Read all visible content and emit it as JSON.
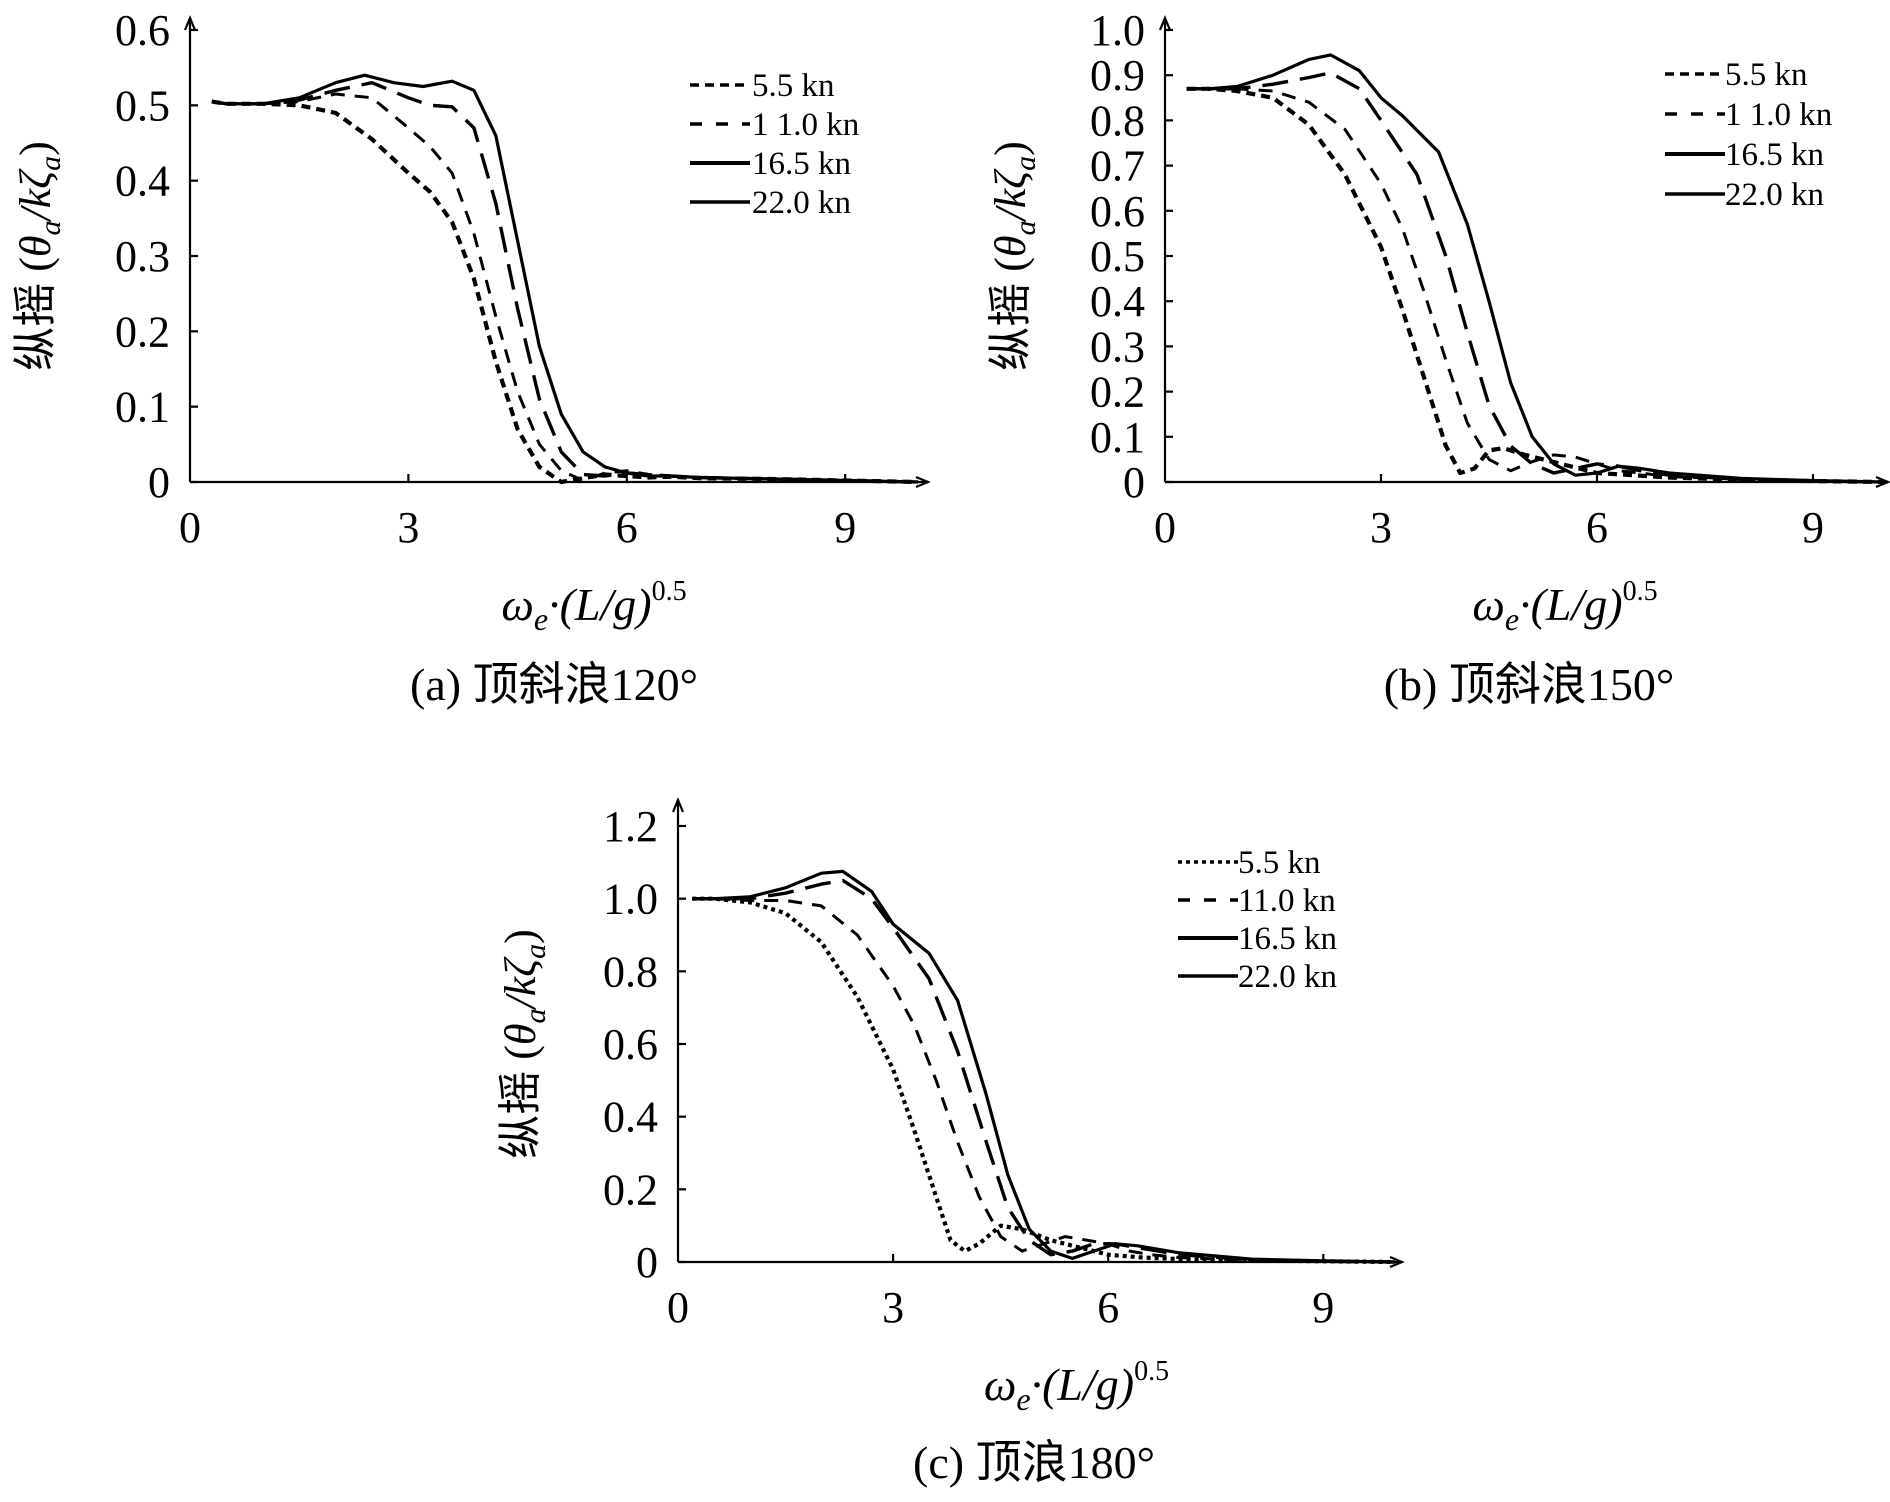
{
  "chart_data": [
    {
      "type": "line",
      "caption": "(a) 顶斜浪120°",
      "ylabel_prefix": "纵摇 (",
      "ylabel_theta": "θ",
      "ylabel_sub": "a",
      "ylabel_mid": "/kζ",
      "ylabel_sub2": "a",
      "ylabel_suffix": ")",
      "xlabel_omega": "ω",
      "xlabel_sub": "e",
      "xlabel_mid": "·(L/g)",
      "xlabel_sup": "0.5",
      "xlim": [
        0,
        10
      ],
      "ylim": [
        0,
        0.6
      ],
      "xticks": [
        "0",
        "3",
        "6",
        "9"
      ],
      "yticks": [
        "0",
        "0.1",
        "0.2",
        "0.3",
        "0.4",
        "0.5",
        "0.6"
      ],
      "series": [
        {
          "name": "5.5 kn",
          "style": "dense",
          "x": [
            0.3,
            0.5,
            1.0,
            1.5,
            2.0,
            2.5,
            3.0,
            3.3,
            3.6,
            3.9,
            4.2,
            4.5,
            4.8,
            5.1,
            5.4,
            5.7,
            6.0,
            6.3,
            6.6,
            7,
            8,
            9,
            10
          ],
          "y": [
            0.505,
            0.502,
            0.502,
            0.5,
            0.49,
            0.455,
            0.41,
            0.385,
            0.345,
            0.27,
            0.16,
            0.07,
            0.02,
            0.0,
            0.005,
            0.01,
            0.008,
            0.006,
            0.007,
            0.005,
            0.004,
            0.002,
            0.0
          ]
        },
        {
          "name": "1 1.0 kn",
          "style": "dash",
          "x": [
            0.3,
            0.5,
            1.0,
            1.5,
            2.0,
            2.5,
            3.0,
            3.3,
            3.6,
            3.9,
            4.2,
            4.5,
            4.8,
            5.1,
            5.4,
            5.7,
            6.0,
            6.3,
            6.6,
            7,
            8,
            9,
            10
          ],
          "y": [
            0.505,
            0.502,
            0.502,
            0.505,
            0.515,
            0.51,
            0.47,
            0.445,
            0.41,
            0.33,
            0.22,
            0.12,
            0.05,
            0.015,
            0.002,
            0.012,
            0.015,
            0.01,
            0.008,
            0.006,
            0.004,
            0.002,
            0.0
          ]
        },
        {
          "name": "16.5 kn",
          "style": "longdash",
          "x": [
            0.3,
            0.5,
            1.0,
            1.5,
            2.0,
            2.5,
            3.0,
            3.3,
            3.6,
            3.9,
            4.2,
            4.5,
            4.8,
            5.1,
            5.4,
            5.7,
            6.0,
            6.3,
            6.6,
            7,
            8,
            9,
            10
          ],
          "y": [
            0.505,
            0.502,
            0.502,
            0.507,
            0.52,
            0.53,
            0.51,
            0.5,
            0.498,
            0.47,
            0.37,
            0.23,
            0.11,
            0.04,
            0.01,
            0.008,
            0.012,
            0.01,
            0.008,
            0.006,
            0.004,
            0.002,
            0.0
          ]
        },
        {
          "name": "22.0 kn",
          "style": "solid",
          "x": [
            0.3,
            0.5,
            1.0,
            1.5,
            2.0,
            2.4,
            2.8,
            3.2,
            3.6,
            3.9,
            4.2,
            4.5,
            4.8,
            5.1,
            5.4,
            5.7,
            6.0,
            6.3,
            6.6,
            7,
            8,
            9,
            10
          ],
          "y": [
            0.505,
            0.502,
            0.502,
            0.51,
            0.53,
            0.54,
            0.53,
            0.525,
            0.532,
            0.52,
            0.46,
            0.32,
            0.18,
            0.09,
            0.04,
            0.02,
            0.012,
            0.008,
            0.008,
            0.006,
            0.004,
            0.002,
            0.0
          ]
        }
      ],
      "legend_placement": "top-right"
    },
    {
      "type": "line",
      "caption": "(b) 顶斜浪150°",
      "ylabel_prefix": "纵摇 (",
      "ylabel_theta": "θ",
      "ylabel_sub": "a",
      "ylabel_mid": "/kζ",
      "ylabel_sub2": "a",
      "ylabel_suffix": ")",
      "xlabel_omega": "ω",
      "xlabel_sub": "e",
      "xlabel_mid": "·(L/g)",
      "xlabel_sup": "0.5",
      "xlim": [
        0,
        10
      ],
      "ylim": [
        0,
        1.0
      ],
      "xticks": [
        "0",
        "3",
        "6",
        "9"
      ],
      "yticks": [
        "0",
        "0.1",
        "0.2",
        "0.3",
        "0.4",
        "0.5",
        "0.6",
        "0.7",
        "0.8",
        "0.9",
        "1.0"
      ],
      "series": [
        {
          "name": "5.5 kn",
          "style": "dense",
          "x": [
            0.3,
            0.6,
            1.0,
            1.5,
            2.0,
            2.5,
            3.0,
            3.3,
            3.6,
            3.9,
            4.1,
            4.3,
            4.5,
            4.7,
            5.0,
            5.5,
            6.0,
            6.5,
            7,
            8,
            9,
            10
          ],
          "y": [
            0.87,
            0.87,
            0.865,
            0.85,
            0.79,
            0.68,
            0.52,
            0.38,
            0.23,
            0.08,
            0.02,
            0.03,
            0.07,
            0.075,
            0.06,
            0.04,
            0.02,
            0.015,
            0.01,
            0.005,
            0.002,
            0.0
          ]
        },
        {
          "name": "1 1.0 kn",
          "style": "dash",
          "x": [
            0.3,
            0.6,
            1.0,
            1.5,
            2.0,
            2.5,
            3.0,
            3.3,
            3.6,
            3.9,
            4.2,
            4.5,
            4.8,
            5.1,
            5.4,
            5.7,
            6.0,
            6.3,
            6.6,
            7,
            8,
            9,
            10
          ],
          "y": [
            0.87,
            0.87,
            0.87,
            0.865,
            0.84,
            0.78,
            0.66,
            0.56,
            0.42,
            0.27,
            0.13,
            0.05,
            0.025,
            0.045,
            0.06,
            0.055,
            0.04,
            0.025,
            0.02,
            0.012,
            0.006,
            0.002,
            0.0
          ]
        },
        {
          "name": "16.5 kn",
          "style": "longdash",
          "x": [
            0.3,
            0.6,
            1.0,
            1.5,
            2.0,
            2.3,
            2.7,
            3.0,
            3.5,
            3.9,
            4.2,
            4.5,
            4.8,
            5.1,
            5.4,
            5.7,
            6.0,
            6.3,
            6.6,
            7,
            8,
            9,
            10
          ],
          "y": [
            0.87,
            0.87,
            0.87,
            0.88,
            0.895,
            0.905,
            0.87,
            0.8,
            0.68,
            0.5,
            0.33,
            0.17,
            0.08,
            0.04,
            0.02,
            0.03,
            0.04,
            0.035,
            0.025,
            0.015,
            0.006,
            0.002,
            0.0
          ]
        },
        {
          "name": "22.0 kn",
          "style": "solid",
          "x": [
            0.3,
            0.6,
            1.0,
            1.5,
            2.0,
            2.3,
            2.7,
            3.0,
            3.3,
            3.8,
            4.2,
            4.5,
            4.8,
            5.1,
            5.4,
            5.7,
            6.0,
            6.3,
            6.6,
            7,
            8,
            9,
            10
          ],
          "y": [
            0.87,
            0.87,
            0.875,
            0.9,
            0.935,
            0.945,
            0.91,
            0.85,
            0.81,
            0.73,
            0.57,
            0.4,
            0.22,
            0.1,
            0.04,
            0.015,
            0.02,
            0.035,
            0.03,
            0.02,
            0.008,
            0.003,
            0.0
          ]
        }
      ],
      "legend_placement": "top-right"
    },
    {
      "type": "line",
      "caption": "(c) 顶浪180°",
      "ylabel_prefix": "纵摇 (",
      "ylabel_theta": "θ",
      "ylabel_sub": "a",
      "ylabel_mid": "/kζ",
      "ylabel_sub2": "a",
      "ylabel_suffix": ")",
      "xlabel_omega": "ω",
      "xlabel_sub": "e",
      "xlabel_mid": "·(L/g)",
      "xlabel_sup": "0.5",
      "xlim": [
        0,
        10
      ],
      "ylim": [
        0,
        1.2
      ],
      "xticks": [
        "0",
        "3",
        "6",
        "9"
      ],
      "yticks": [
        "0",
        "0.2",
        "0.4",
        "0.6",
        "0.8",
        "1.0",
        "1.2"
      ],
      "series": [
        {
          "name": "5.5 kn",
          "style": "dotted",
          "x": [
            0.2,
            0.5,
            1.0,
            1.5,
            2.0,
            2.5,
            3.0,
            3.3,
            3.6,
            3.8,
            4.0,
            4.2,
            4.5,
            4.8,
            5.2,
            5.6,
            6.0,
            6.5,
            7,
            8,
            9,
            10
          ],
          "y": [
            1.0,
            1.0,
            0.99,
            0.96,
            0.88,
            0.73,
            0.53,
            0.36,
            0.18,
            0.06,
            0.03,
            0.05,
            0.1,
            0.09,
            0.06,
            0.04,
            0.02,
            0.012,
            0.008,
            0.004,
            0.002,
            0.0
          ]
        },
        {
          "name": "11.0 kn",
          "style": "dash",
          "x": [
            0.2,
            0.5,
            1.0,
            1.5,
            2.0,
            2.5,
            3.0,
            3.3,
            3.6,
            3.9,
            4.2,
            4.5,
            4.8,
            5.1,
            5.4,
            5.7,
            6.0,
            6.3,
            6.6,
            7,
            8,
            9,
            10
          ],
          "y": [
            1.0,
            1.0,
            0.995,
            0.995,
            0.98,
            0.9,
            0.76,
            0.65,
            0.5,
            0.33,
            0.18,
            0.07,
            0.03,
            0.05,
            0.07,
            0.06,
            0.05,
            0.03,
            0.02,
            0.012,
            0.005,
            0.002,
            0.0
          ]
        },
        {
          "name": "16.5 kn",
          "style": "longdash",
          "x": [
            0.2,
            0.5,
            1.0,
            1.5,
            2.0,
            2.3,
            2.7,
            3.0,
            3.5,
            3.9,
            4.3,
            4.6,
            4.9,
            5.2,
            5.5,
            5.8,
            6.1,
            6.4,
            6.7,
            7,
            8,
            9,
            10
          ],
          "y": [
            1.0,
            1.0,
            1.0,
            1.015,
            1.04,
            1.05,
            1.0,
            0.92,
            0.78,
            0.58,
            0.33,
            0.15,
            0.06,
            0.02,
            0.03,
            0.05,
            0.05,
            0.04,
            0.03,
            0.02,
            0.006,
            0.002,
            0.0
          ]
        },
        {
          "name": "22.0 kn",
          "style": "solid",
          "x": [
            0.2,
            0.5,
            1.0,
            1.5,
            2.0,
            2.3,
            2.7,
            3.0,
            3.5,
            3.9,
            4.3,
            4.6,
            4.9,
            5.2,
            5.5,
            5.8,
            6.1,
            6.4,
            6.7,
            7,
            8,
            9,
            10
          ],
          "y": [
            1.0,
            1.0,
            1.005,
            1.03,
            1.07,
            1.075,
            1.02,
            0.93,
            0.85,
            0.72,
            0.46,
            0.24,
            0.09,
            0.03,
            0.01,
            0.03,
            0.05,
            0.045,
            0.035,
            0.025,
            0.008,
            0.003,
            0.0
          ]
        }
      ],
      "legend_placement": "top-right"
    }
  ]
}
